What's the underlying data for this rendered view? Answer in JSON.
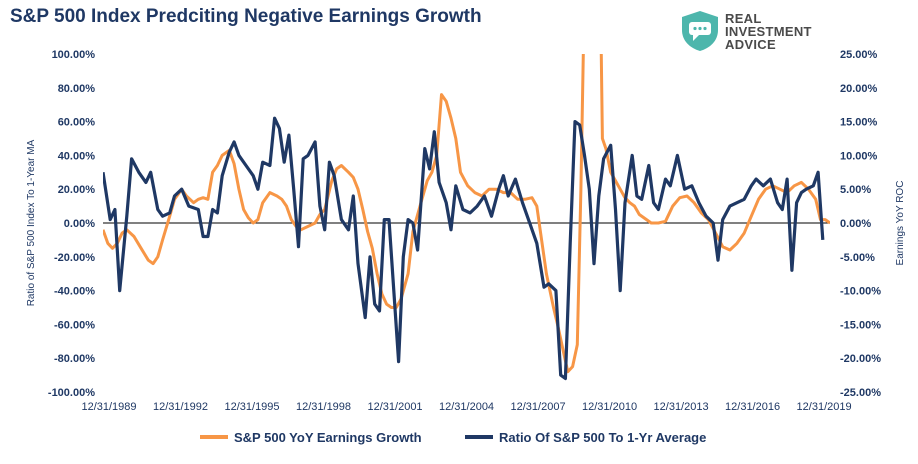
{
  "title": "S&P 500 Index Predciting Negative Earnings Growth",
  "logo": {
    "line1": "REAL",
    "line2": "INVESTMENT",
    "line3": "ADVICE",
    "color": "#4db6ac"
  },
  "chart_data": {
    "type": "line",
    "ylabel_left": "Ratio of S&P 500 Index To 1-Year MA",
    "ylabel_right": "Earnings YoY ROC",
    "y_left_range": [
      -100,
      100
    ],
    "y_left_ticks": [
      "100.00%",
      "80.00%",
      "60.00%",
      "40.00%",
      "20.00%",
      "0.00%",
      "-20.00%",
      "-40.00%",
      "-60.00%",
      "-80.00%",
      "-100.00%"
    ],
    "y_right_range": [
      -25,
      25
    ],
    "y_right_ticks": [
      "25.00%",
      "20.00%",
      "15.00%",
      "10.00%",
      "5.00%",
      "0.00%",
      "-5.00%",
      "-10.00%",
      "-15.00%",
      "-20.00%",
      "-25.00%"
    ],
    "x_range": [
      1989.0,
      2019.5
    ],
    "x_ticks": [
      {
        "x": 1989.0,
        "label": "12/31/1989"
      },
      {
        "x": 1992.0,
        "label": "12/31/1992"
      },
      {
        "x": 1995.0,
        "label": "12/31/1995"
      },
      {
        "x": 1998.0,
        "label": "12/31/1998"
      },
      {
        "x": 2001.0,
        "label": "12/31/2001"
      },
      {
        "x": 2004.0,
        "label": "12/31/2004"
      },
      {
        "x": 2007.0,
        "label": "12/31/2007"
      },
      {
        "x": 2010.0,
        "label": "12/31/2010"
      },
      {
        "x": 2013.0,
        "label": "12/31/2013"
      },
      {
        "x": 2016.0,
        "label": "12/31/2016"
      },
      {
        "x": 2019.0,
        "label": "12/31/2019"
      }
    ],
    "grid": false,
    "legend_position": "bottom",
    "series": [
      {
        "name": "S&P 500 YoY Earnings Growth",
        "axis": "left",
        "color": "#f79646",
        "points": [
          [
            1989.0,
            -4
          ],
          [
            1989.2,
            -12
          ],
          [
            1989.4,
            -15
          ],
          [
            1989.6,
            -12
          ],
          [
            1989.8,
            -6
          ],
          [
            1990.0,
            -4
          ],
          [
            1990.3,
            -8
          ],
          [
            1990.6,
            -15
          ],
          [
            1990.9,
            -22
          ],
          [
            1991.1,
            -24
          ],
          [
            1991.3,
            -20
          ],
          [
            1991.5,
            -10
          ],
          [
            1991.8,
            4
          ],
          [
            1992.0,
            14
          ],
          [
            1992.3,
            20
          ],
          [
            1992.5,
            16
          ],
          [
            1992.8,
            12
          ],
          [
            1993.0,
            14
          ],
          [
            1993.2,
            15
          ],
          [
            1993.4,
            14
          ],
          [
            1993.6,
            30
          ],
          [
            1993.8,
            34
          ],
          [
            1994.0,
            40
          ],
          [
            1994.3,
            43
          ],
          [
            1994.5,
            35
          ],
          [
            1994.7,
            20
          ],
          [
            1994.9,
            8
          ],
          [
            1995.1,
            3
          ],
          [
            1995.3,
            0
          ],
          [
            1995.5,
            2
          ],
          [
            1995.7,
            12
          ],
          [
            1996.0,
            18
          ],
          [
            1996.3,
            16
          ],
          [
            1996.5,
            14
          ],
          [
            1996.7,
            10
          ],
          [
            1996.9,
            2
          ],
          [
            1997.1,
            -2
          ],
          [
            1997.3,
            -4
          ],
          [
            1997.6,
            -2
          ],
          [
            1997.9,
            0
          ],
          [
            1998.1,
            5
          ],
          [
            1998.3,
            8
          ],
          [
            1998.6,
            25
          ],
          [
            1998.8,
            32
          ],
          [
            1999.0,
            34
          ],
          [
            1999.3,
            30
          ],
          [
            1999.5,
            27
          ],
          [
            1999.7,
            20
          ],
          [
            1999.9,
            8
          ],
          [
            2000.1,
            -5
          ],
          [
            2000.3,
            -15
          ],
          [
            2000.5,
            -30
          ],
          [
            2000.7,
            -42
          ],
          [
            2000.9,
            -48
          ],
          [
            2001.1,
            -50
          ],
          [
            2001.3,
            -50
          ],
          [
            2001.5,
            -45
          ],
          [
            2001.8,
            -30
          ],
          [
            2002.0,
            -5
          ],
          [
            2002.3,
            10
          ],
          [
            2002.6,
            25
          ],
          [
            2002.8,
            30
          ],
          [
            2003.0,
            40
          ],
          [
            2003.2,
            76
          ],
          [
            2003.4,
            72
          ],
          [
            2003.6,
            62
          ],
          [
            2003.8,
            50
          ],
          [
            2004.0,
            30
          ],
          [
            2004.3,
            22
          ],
          [
            2004.6,
            18
          ],
          [
            2004.9,
            16
          ],
          [
            2005.2,
            20
          ],
          [
            2005.5,
            20
          ],
          [
            2005.8,
            18
          ],
          [
            2006.1,
            18
          ],
          [
            2006.4,
            14
          ],
          [
            2006.7,
            14
          ],
          [
            2007.0,
            15
          ],
          [
            2007.2,
            10
          ],
          [
            2007.4,
            -10
          ],
          [
            2007.6,
            -30
          ],
          [
            2007.9,
            -50
          ],
          [
            2008.1,
            -62
          ],
          [
            2008.3,
            -75
          ],
          [
            2008.5,
            -88
          ],
          [
            2008.7,
            -85
          ],
          [
            2008.9,
            -72
          ],
          [
            2009.05,
            20
          ],
          [
            2009.15,
            100
          ],
          [
            2009.2,
            103
          ],
          [
            2009.9,
            103
          ],
          [
            2009.95,
            50
          ],
          [
            2010.1,
            44
          ],
          [
            2010.3,
            30
          ],
          [
            2010.5,
            25
          ],
          [
            2010.7,
            20
          ],
          [
            2010.9,
            15
          ],
          [
            2011.1,
            12
          ],
          [
            2011.3,
            10
          ],
          [
            2011.5,
            5
          ],
          [
            2011.8,
            2
          ],
          [
            2012.0,
            0
          ],
          [
            2012.3,
            0
          ],
          [
            2012.6,
            1
          ],
          [
            2012.9,
            10
          ],
          [
            2013.2,
            15
          ],
          [
            2013.5,
            16
          ],
          [
            2013.8,
            12
          ],
          [
            2014.1,
            6
          ],
          [
            2014.4,
            2
          ],
          [
            2014.7,
            -6
          ],
          [
            2015.0,
            -14
          ],
          [
            2015.3,
            -16
          ],
          [
            2015.6,
            -12
          ],
          [
            2015.9,
            -6
          ],
          [
            2016.2,
            4
          ],
          [
            2016.5,
            14
          ],
          [
            2016.8,
            20
          ],
          [
            2017.1,
            22
          ],
          [
            2017.4,
            20
          ],
          [
            2017.7,
            18
          ],
          [
            2018.0,
            22
          ],
          [
            2018.3,
            24
          ],
          [
            2018.6,
            20
          ],
          [
            2018.9,
            14
          ],
          [
            2019.1,
            2
          ],
          [
            2019.3,
            2
          ],
          [
            2019.5,
            0
          ]
        ]
      },
      {
        "name": "Ratio Of S&P 500 To 1-Yr Average",
        "axis": "right",
        "color": "#1f3864",
        "points": [
          [
            1989.0,
            7.5
          ],
          [
            1989.3,
            0.5
          ],
          [
            1989.5,
            2
          ],
          [
            1989.7,
            -10
          ],
          [
            1990.0,
            1
          ],
          [
            1990.2,
            9.5
          ],
          [
            1990.5,
            7.5
          ],
          [
            1990.8,
            6
          ],
          [
            1991.0,
            7.5
          ],
          [
            1991.3,
            2
          ],
          [
            1991.5,
            1
          ],
          [
            1991.8,
            1.5
          ],
          [
            1992.0,
            4
          ],
          [
            1992.3,
            5
          ],
          [
            1992.6,
            2.5
          ],
          [
            1993.0,
            2
          ],
          [
            1993.2,
            -2
          ],
          [
            1993.4,
            -2
          ],
          [
            1993.6,
            2
          ],
          [
            1993.8,
            1.5
          ],
          [
            1994.0,
            7
          ],
          [
            1994.3,
            10.5
          ],
          [
            1994.5,
            12
          ],
          [
            1994.7,
            10
          ],
          [
            1995.0,
            8.5
          ],
          [
            1995.3,
            7
          ],
          [
            1995.5,
            5
          ],
          [
            1995.7,
            9
          ],
          [
            1996.0,
            8.5
          ],
          [
            1996.2,
            15.5
          ],
          [
            1996.4,
            14
          ],
          [
            1996.6,
            9
          ],
          [
            1996.8,
            13
          ],
          [
            1997.0,
            5
          ],
          [
            1997.2,
            -3.5
          ],
          [
            1997.4,
            9.5
          ],
          [
            1997.6,
            10
          ],
          [
            1997.9,
            12
          ],
          [
            1998.1,
            2.5
          ],
          [
            1998.3,
            -1
          ],
          [
            1998.5,
            9
          ],
          [
            1998.7,
            7
          ],
          [
            1999.0,
            0.5
          ],
          [
            1999.3,
            -1
          ],
          [
            1999.5,
            4
          ],
          [
            1999.7,
            -6
          ],
          [
            2000.0,
            -14
          ],
          [
            2000.2,
            -5
          ],
          [
            2000.4,
            -12
          ],
          [
            2000.6,
            -13
          ],
          [
            2000.8,
            0.5
          ],
          [
            2001.0,
            0.5
          ],
          [
            2001.2,
            -10
          ],
          [
            2001.4,
            -20.5
          ],
          [
            2001.6,
            -5
          ],
          [
            2001.8,
            0.5
          ],
          [
            2002.0,
            0
          ],
          [
            2002.2,
            -4
          ],
          [
            2002.5,
            11
          ],
          [
            2002.7,
            8
          ],
          [
            2002.9,
            13.5
          ],
          [
            2003.1,
            6
          ],
          [
            2003.4,
            3
          ],
          [
            2003.6,
            -1
          ],
          [
            2003.8,
            5.5
          ],
          [
            2004.1,
            2
          ],
          [
            2004.4,
            1.5
          ],
          [
            2004.7,
            2.5
          ],
          [
            2005.0,
            4
          ],
          [
            2005.3,
            1
          ],
          [
            2005.6,
            5
          ],
          [
            2005.8,
            7
          ],
          [
            2006.0,
            4
          ],
          [
            2006.3,
            6.5
          ],
          [
            2006.6,
            3
          ],
          [
            2006.9,
            0
          ],
          [
            2007.2,
            -3
          ],
          [
            2007.5,
            -9.5
          ],
          [
            2007.7,
            -9
          ],
          [
            2008.0,
            -10
          ],
          [
            2008.2,
            -22.5
          ],
          [
            2008.4,
            -23
          ],
          [
            2008.6,
            -3
          ],
          [
            2008.8,
            15
          ],
          [
            2009.0,
            14.5
          ],
          [
            2009.2,
            10
          ],
          [
            2009.4,
            5
          ],
          [
            2009.6,
            -6
          ],
          [
            2009.8,
            4
          ],
          [
            2010.0,
            9.5
          ],
          [
            2010.3,
            11.5
          ],
          [
            2010.5,
            2
          ],
          [
            2010.7,
            -10
          ],
          [
            2010.9,
            3
          ],
          [
            2011.2,
            10
          ],
          [
            2011.4,
            4
          ],
          [
            2011.6,
            3.5
          ],
          [
            2011.9,
            8.5
          ],
          [
            2012.1,
            3
          ],
          [
            2012.3,
            2
          ],
          [
            2012.6,
            6.5
          ],
          [
            2012.8,
            5.5
          ],
          [
            2013.1,
            10
          ],
          [
            2013.4,
            5
          ],
          [
            2013.7,
            5.5
          ],
          [
            2014.0,
            3
          ],
          [
            2014.3,
            1
          ],
          [
            2014.6,
            0
          ],
          [
            2014.8,
            -5.5
          ],
          [
            2015.0,
            0.5
          ],
          [
            2015.3,
            2.5
          ],
          [
            2015.6,
            3
          ],
          [
            2015.9,
            3.5
          ],
          [
            2016.2,
            5.5
          ],
          [
            2016.4,
            6.5
          ],
          [
            2016.7,
            5.5
          ],
          [
            2017.0,
            6.5
          ],
          [
            2017.3,
            3
          ],
          [
            2017.5,
            2
          ],
          [
            2017.7,
            6.5
          ],
          [
            2017.9,
            -7
          ],
          [
            2018.1,
            3
          ],
          [
            2018.3,
            4.5
          ],
          [
            2018.5,
            5
          ],
          [
            2018.8,
            5.5
          ],
          [
            2019.0,
            7.5
          ],
          [
            2019.2,
            -2.5
          ]
        ]
      }
    ]
  }
}
